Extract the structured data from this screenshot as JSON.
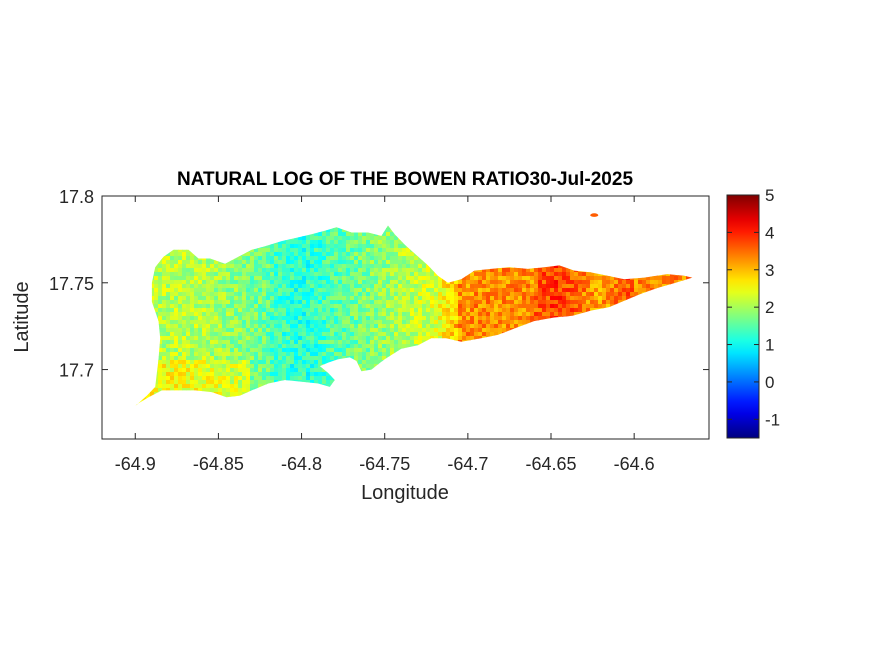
{
  "chart_data": {
    "type": "heatmap",
    "title": "NATURAL LOG OF THE BOWEN RATIO30-Jul-2025",
    "xlabel": "Longitude",
    "ylabel": "Latitude",
    "xlim": [
      -64.92,
      -64.555
    ],
    "ylim": [
      17.66,
      17.8
    ],
    "x_ticks": [
      -64.9,
      -64.85,
      -64.8,
      -64.75,
      -64.7,
      -64.65,
      -64.6
    ],
    "x_tick_labels": [
      "-64.9",
      "-64.85",
      "-64.8",
      "-64.75",
      "-64.7",
      "-64.65",
      "-64.6"
    ],
    "y_ticks": [
      17.7,
      17.75,
      17.8
    ],
    "y_tick_labels": [
      "17.7",
      "17.75",
      "17.8"
    ],
    "colorbar": {
      "colormap": "jet",
      "limits": [
        -1.5,
        5
      ],
      "ticks": [
        -1,
        0,
        1,
        2,
        3,
        4,
        5
      ],
      "tick_labels": [
        "-1",
        "0",
        "1",
        "2",
        "3",
        "4",
        "5"
      ],
      "colors": [
        "#00008f",
        "#0000ff",
        "#0080ff",
        "#00ffff",
        "#80ff80",
        "#ffff00",
        "#ff8000",
        "#ff0000",
        "#800000"
      ]
    },
    "field_description": {
      "west_mean": 2.1,
      "center_mean": 1.2,
      "east_mean": 3.3,
      "max_east": 4.3
    },
    "outline": [
      [
        -64.9,
        17.679
      ],
      [
        -64.893,
        17.685
      ],
      [
        -64.888,
        17.69
      ],
      [
        -64.886,
        17.706
      ],
      [
        -64.885,
        17.718
      ],
      [
        -64.886,
        17.728
      ],
      [
        -64.89,
        17.739
      ],
      [
        -64.89,
        17.75
      ],
      [
        -64.888,
        17.759
      ],
      [
        -64.883,
        17.765
      ],
      [
        -64.877,
        17.769
      ],
      [
        -64.868,
        17.769
      ],
      [
        -64.862,
        17.764
      ],
      [
        -64.855,
        17.764
      ],
      [
        -64.846,
        17.761
      ],
      [
        -64.838,
        17.765
      ],
      [
        -64.83,
        17.769
      ],
      [
        -64.822,
        17.771
      ],
      [
        -64.812,
        17.774
      ],
      [
        -64.803,
        17.776
      ],
      [
        -64.794,
        17.778
      ],
      [
        -64.786,
        17.78
      ],
      [
        -64.779,
        17.782
      ],
      [
        -64.77,
        17.779
      ],
      [
        -64.76,
        17.779
      ],
      [
        -64.752,
        17.777
      ],
      [
        -64.748,
        17.783
      ],
      [
        -64.744,
        17.778
      ],
      [
        -64.738,
        17.772
      ],
      [
        -64.731,
        17.766
      ],
      [
        -64.724,
        17.76
      ],
      [
        -64.718,
        17.754
      ],
      [
        -64.712,
        17.75
      ],
      [
        -64.704,
        17.752
      ],
      [
        -64.696,
        17.757
      ],
      [
        -64.686,
        17.758
      ],
      [
        -64.675,
        17.759
      ],
      [
        -64.664,
        17.758
      ],
      [
        -64.654,
        17.759
      ],
      [
        -64.645,
        17.76
      ],
      [
        -64.636,
        17.757
      ],
      [
        -64.626,
        17.756
      ],
      [
        -64.616,
        17.754
      ],
      [
        -64.606,
        17.752
      ],
      [
        -64.594,
        17.753
      ],
      [
        -64.58,
        17.755
      ],
      [
        -64.57,
        17.754
      ],
      [
        -64.565,
        17.753
      ],
      [
        -64.575,
        17.75
      ],
      [
        -64.586,
        17.747
      ],
      [
        -64.595,
        17.744
      ],
      [
        -64.605,
        17.74
      ],
      [
        -64.615,
        17.736
      ],
      [
        -64.626,
        17.734
      ],
      [
        -64.637,
        17.731
      ],
      [
        -64.648,
        17.73
      ],
      [
        -64.66,
        17.728
      ],
      [
        -64.671,
        17.724
      ],
      [
        -64.682,
        17.72
      ],
      [
        -64.692,
        17.718
      ],
      [
        -64.704,
        17.716
      ],
      [
        -64.713,
        17.718
      ],
      [
        -64.722,
        17.718
      ],
      [
        -64.73,
        17.714
      ],
      [
        -64.74,
        17.712
      ],
      [
        -64.75,
        17.706
      ],
      [
        -64.758,
        17.7
      ],
      [
        -64.764,
        17.699
      ],
      [
        -64.767,
        17.705
      ],
      [
        -64.771,
        17.707
      ],
      [
        -64.778,
        17.706
      ],
      [
        -64.784,
        17.704
      ],
      [
        -64.789,
        17.702
      ],
      [
        -64.784,
        17.698
      ],
      [
        -64.78,
        17.694
      ],
      [
        -64.783,
        17.69
      ],
      [
        -64.79,
        17.692
      ],
      [
        -64.8,
        17.693
      ],
      [
        -64.81,
        17.694
      ],
      [
        -64.82,
        17.692
      ],
      [
        -64.83,
        17.688
      ],
      [
        -64.837,
        17.685
      ],
      [
        -64.845,
        17.684
      ],
      [
        -64.854,
        17.687
      ],
      [
        -64.864,
        17.688
      ],
      [
        -64.874,
        17.688
      ],
      [
        -64.884,
        17.688
      ],
      [
        -64.892,
        17.684
      ],
      [
        -64.899,
        17.68
      ]
    ],
    "islet": [
      -64.624,
      17.789
    ]
  }
}
